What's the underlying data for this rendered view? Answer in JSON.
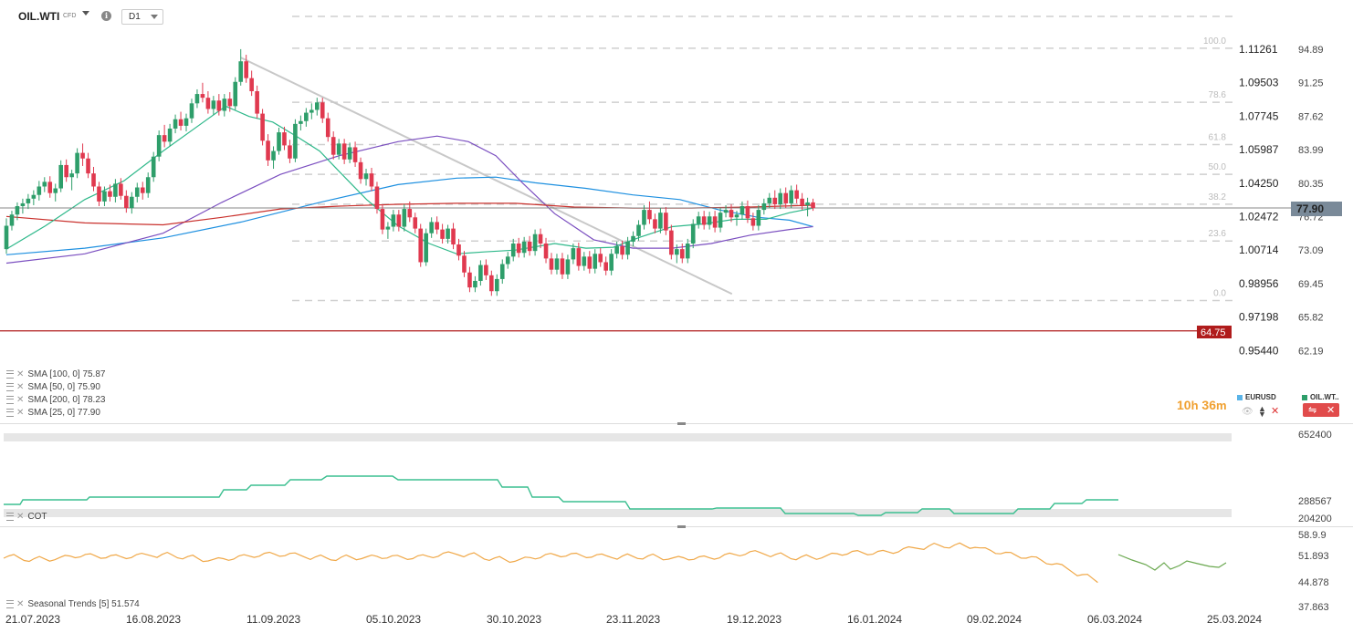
{
  "header": {
    "symbol": "OIL.WTI",
    "symbol_type": "CFD",
    "timeframe": "D1",
    "info_icon": "info-icon"
  },
  "price_axis": {
    "right_labels": [
      "94.89",
      "91.25",
      "87.62",
      "83.99",
      "80.35",
      "76.72",
      "73.09",
      "69.45",
      "65.82",
      "62.19"
    ],
    "left_labels": [
      "1.11261",
      "1.09503",
      "1.07745",
      "1.05987",
      "1.04250",
      "1.02472",
      "1.00714",
      "0.98956",
      "0.97198",
      "0.95440"
    ],
    "current_price": "77.90",
    "line_price": "64.75",
    "current_color": "#7a8a99",
    "line_color": "#b01c1c"
  },
  "fib_levels": [
    "100.0",
    "78.6",
    "61.8",
    "50.0",
    "38.2",
    "23.6",
    "0.0"
  ],
  "indicators": [
    {
      "label": "SMA",
      "params": "[100,  0]",
      "value": "75.87",
      "color": "#1e90e0"
    },
    {
      "label": "SMA",
      "params": "[50, 0]",
      "value": "75.90",
      "color": "#7b4fc0"
    },
    {
      "label": "SMA",
      "params": "[200,  0]",
      "value": "78.23",
      "color": "#c9302c"
    },
    {
      "label": "SMA",
      "params": "[25,  0]",
      "value": "77.90",
      "color": "#2eb88a"
    }
  ],
  "countdown": {
    "hours": "10",
    "h_unit": "h",
    "minutes": "36",
    "m_unit": "m"
  },
  "instruments": [
    {
      "name": "EURUSD",
      "color": "#5ab4e8"
    },
    {
      "name": "OIL.WT..",
      "color": "#2e9e6a"
    }
  ],
  "cot": {
    "label": "COT",
    "axis_labels": [
      "652400",
      "288567",
      "204200"
    ],
    "line_color": "#3cbf90"
  },
  "seasonal": {
    "label": "Seasonal Trends",
    "params": "[5]",
    "value": "51.574",
    "axis_labels": [
      "58.9.9",
      "51.893",
      "44.878",
      "37.863"
    ],
    "actual_color": "#f0a848",
    "forecast_color": "#6aa84f"
  },
  "dates": [
    "21.07.2023",
    "16.08.2023",
    "11.09.2023",
    "05.10.2023",
    "30.10.2023",
    "23.11.2023",
    "19.12.2023",
    "16.01.2024",
    "09.02.2024",
    "06.03.2024",
    "25.03.2024"
  ],
  "chart_data": {
    "type": "candlestick",
    "instrument": "OIL.WTI",
    "timeframe": "D1",
    "ylim": [
      62.19,
      96.5
    ],
    "candles": [
      [
        73.5,
        76.8,
        73.0,
        76.0
      ],
      [
        76.0,
        77.6,
        75.5,
        77.2
      ],
      [
        77.2,
        78.5,
        76.6,
        78.1
      ],
      [
        78.1,
        78.9,
        77.3,
        78.4
      ],
      [
        78.4,
        79.4,
        77.8,
        78.9
      ],
      [
        78.9,
        79.8,
        78.2,
        79.3
      ],
      [
        79.3,
        80.8,
        78.7,
        80.2
      ],
      [
        80.2,
        81.2,
        79.6,
        80.7
      ],
      [
        80.7,
        81.3,
        79.0,
        79.5
      ],
      [
        79.5,
        80.5,
        78.6,
        80.0
      ],
      [
        80.0,
        83.0,
        79.6,
        82.5
      ],
      [
        82.5,
        83.1,
        80.7,
        81.2
      ],
      [
        81.2,
        82.0,
        79.8,
        81.6
      ],
      [
        81.6,
        84.3,
        81.1,
        83.8
      ],
      [
        83.8,
        84.8,
        82.4,
        83.2
      ],
      [
        83.2,
        83.8,
        81.1,
        81.6
      ],
      [
        81.6,
        82.3,
        79.7,
        80.2
      ],
      [
        80.2,
        80.7,
        78.1,
        78.6
      ],
      [
        78.6,
        80.2,
        78.1,
        79.7
      ],
      [
        79.7,
        80.4,
        78.6,
        79.1
      ],
      [
        79.1,
        81.0,
        78.5,
        80.5
      ],
      [
        80.5,
        81.1,
        78.8,
        79.2
      ],
      [
        79.2,
        79.8,
        77.4,
        77.9
      ],
      [
        77.9,
        79.6,
        77.3,
        79.1
      ],
      [
        79.1,
        80.6,
        78.5,
        80.1
      ],
      [
        80.1,
        80.7,
        78.8,
        79.5
      ],
      [
        79.5,
        81.7,
        79.0,
        81.2
      ],
      [
        81.2,
        83.9,
        80.7,
        83.4
      ],
      [
        83.4,
        86.2,
        82.9,
        85.7
      ],
      [
        85.7,
        86.8,
        84.4,
        85.0
      ],
      [
        85.0,
        86.9,
        84.5,
        86.4
      ],
      [
        86.4,
        87.9,
        85.9,
        87.4
      ],
      [
        87.4,
        88.2,
        86.2,
        86.7
      ],
      [
        86.7,
        88.0,
        86.1,
        87.5
      ],
      [
        87.5,
        89.6,
        87.0,
        89.1
      ],
      [
        89.1,
        90.6,
        88.6,
        90.1
      ],
      [
        90.1,
        91.3,
        89.2,
        89.7
      ],
      [
        89.7,
        90.4,
        88.0,
        88.5
      ],
      [
        88.5,
        89.9,
        87.9,
        89.4
      ],
      [
        89.4,
        90.1,
        87.8,
        88.3
      ],
      [
        88.3,
        90.1,
        87.7,
        89.6
      ],
      [
        89.6,
        90.3,
        88.2,
        88.8
      ],
      [
        88.8,
        91.9,
        88.4,
        91.4
      ],
      [
        91.4,
        94.9,
        91.0,
        93.6
      ],
      [
        93.6,
        94.3,
        91.3,
        91.8
      ],
      [
        91.8,
        92.6,
        89.9,
        90.4
      ],
      [
        90.4,
        91.0,
        87.5,
        88.0
      ],
      [
        88.0,
        88.5,
        84.6,
        85.1
      ],
      [
        85.1,
        85.8,
        82.4,
        83.0
      ],
      [
        83.0,
        84.5,
        82.1,
        84.0
      ],
      [
        84.0,
        86.5,
        83.6,
        86.0
      ],
      [
        86.0,
        86.6,
        84.1,
        84.6
      ],
      [
        84.6,
        85.2,
        82.7,
        83.2
      ],
      [
        83.2,
        87.4,
        82.8,
        86.9
      ],
      [
        86.9,
        87.8,
        86.2,
        87.2
      ],
      [
        87.2,
        88.6,
        86.6,
        88.1
      ],
      [
        88.1,
        89.1,
        87.4,
        88.4
      ],
      [
        88.4,
        89.7,
        87.8,
        89.2
      ],
      [
        89.2,
        89.7,
        87.0,
        87.5
      ],
      [
        87.5,
        88.1,
        85.0,
        85.5
      ],
      [
        85.5,
        86.1,
        83.1,
        83.6
      ],
      [
        83.6,
        85.3,
        83.1,
        84.8
      ],
      [
        84.8,
        85.3,
        82.6,
        83.1
      ],
      [
        83.1,
        84.9,
        82.7,
        84.4
      ],
      [
        84.4,
        85.0,
        82.3,
        82.8
      ],
      [
        82.8,
        83.3,
        80.5,
        81.0
      ],
      [
        81.0,
        82.1,
        80.3,
        81.6
      ],
      [
        81.6,
        82.2,
        79.7,
        80.2
      ],
      [
        80.2,
        80.7,
        77.3,
        77.8
      ],
      [
        77.8,
        78.3,
        75.1,
        75.6
      ],
      [
        75.6,
        76.4,
        74.6,
        75.9
      ],
      [
        75.9,
        77.7,
        75.4,
        77.2
      ],
      [
        77.2,
        77.7,
        75.4,
        75.9
      ],
      [
        75.9,
        78.3,
        75.4,
        77.8
      ],
      [
        77.8,
        78.6,
        76.4,
        76.9
      ],
      [
        76.9,
        77.4,
        75.2,
        75.7
      ],
      [
        75.7,
        76.2,
        71.6,
        72.1
      ],
      [
        72.1,
        75.7,
        71.7,
        75.2
      ],
      [
        75.2,
        76.9,
        74.7,
        76.4
      ],
      [
        76.4,
        77.0,
        75.1,
        75.6
      ],
      [
        75.6,
        76.2,
        74.1,
        74.6
      ],
      [
        74.6,
        76.1,
        74.1,
        75.7
      ],
      [
        75.7,
        76.3,
        73.5,
        74.0
      ],
      [
        74.0,
        74.6,
        72.3,
        72.8
      ],
      [
        72.8,
        73.3,
        70.5,
        71.0
      ],
      [
        71.0,
        71.6,
        68.9,
        69.4
      ],
      [
        69.4,
        70.6,
        68.9,
        70.1
      ],
      [
        70.1,
        72.3,
        69.6,
        71.8
      ],
      [
        71.8,
        72.4,
        70.2,
        70.7
      ],
      [
        70.7,
        71.2,
        68.5,
        69.0
      ],
      [
        69.0,
        70.8,
        68.5,
        70.3
      ],
      [
        70.3,
        72.4,
        69.8,
        71.9
      ],
      [
        71.9,
        73.2,
        71.4,
        72.7
      ],
      [
        72.7,
        74.6,
        72.2,
        74.1
      ],
      [
        74.1,
        74.7,
        72.6,
        73.1
      ],
      [
        73.1,
        74.8,
        72.6,
        74.3
      ],
      [
        74.3,
        74.9,
        72.8,
        73.3
      ],
      [
        73.3,
        75.6,
        72.8,
        75.1
      ],
      [
        75.1,
        75.7,
        73.6,
        74.1
      ],
      [
        74.1,
        74.7,
        72.0,
        72.5
      ],
      [
        72.5,
        73.1,
        70.8,
        71.3
      ],
      [
        71.3,
        73.0,
        70.8,
        72.5
      ],
      [
        72.5,
        73.1,
        70.3,
        70.8
      ],
      [
        70.8,
        72.9,
        70.3,
        72.4
      ],
      [
        72.4,
        74.1,
        71.9,
        73.6
      ],
      [
        73.6,
        74.2,
        71.2,
        71.7
      ],
      [
        71.7,
        73.2,
        71.2,
        72.7
      ],
      [
        72.7,
        73.3,
        70.9,
        71.4
      ],
      [
        71.4,
        73.5,
        70.9,
        73.0
      ],
      [
        73.0,
        73.6,
        71.6,
        72.1
      ],
      [
        72.1,
        72.7,
        70.7,
        71.2
      ],
      [
        71.2,
        73.5,
        70.7,
        73.0
      ],
      [
        73.0,
        74.3,
        72.5,
        73.8
      ],
      [
        73.8,
        74.4,
        72.4,
        72.9
      ],
      [
        72.9,
        74.8,
        72.4,
        74.3
      ],
      [
        74.3,
        75.4,
        73.8,
        74.9
      ],
      [
        74.9,
        76.6,
        74.4,
        76.1
      ],
      [
        76.1,
        78.2,
        75.6,
        77.7
      ],
      [
        77.7,
        78.6,
        76.2,
        76.7
      ],
      [
        76.7,
        77.3,
        75.2,
        75.7
      ],
      [
        75.7,
        77.9,
        75.2,
        77.4
      ],
      [
        77.4,
        78.0,
        75.0,
        75.5
      ],
      [
        75.5,
        76.1,
        72.4,
        72.9
      ],
      [
        72.9,
        74.0,
        72.0,
        73.5
      ],
      [
        73.5,
        74.1,
        72.0,
        72.5
      ],
      [
        72.5,
        74.6,
        72.0,
        74.1
      ],
      [
        74.1,
        76.7,
        73.6,
        76.2
      ],
      [
        76.2,
        77.5,
        75.7,
        77.0
      ],
      [
        77.0,
        77.6,
        75.6,
        76.1
      ],
      [
        76.1,
        77.5,
        75.6,
        77.0
      ],
      [
        77.0,
        77.6,
        75.3,
        75.8
      ],
      [
        75.8,
        77.9,
        75.3,
        77.4
      ],
      [
        77.4,
        78.2,
        76.9,
        77.7
      ],
      [
        77.7,
        78.3,
        76.4,
        76.9
      ],
      [
        76.9,
        77.6,
        76.0,
        77.2
      ],
      [
        77.2,
        78.6,
        76.7,
        78.1
      ],
      [
        78.1,
        78.7,
        76.3,
        76.8
      ],
      [
        76.8,
        77.4,
        75.5,
        76.0
      ],
      [
        76.0,
        78.2,
        75.5,
        77.7
      ],
      [
        77.7,
        78.9,
        77.2,
        78.4
      ],
      [
        78.4,
        79.5,
        77.9,
        79.0
      ],
      [
        79.0,
        79.8,
        77.8,
        78.3
      ],
      [
        78.3,
        80.0,
        77.8,
        79.5
      ],
      [
        79.5,
        80.1,
        77.9,
        78.4
      ],
      [
        78.4,
        80.3,
        77.9,
        79.8
      ],
      [
        79.8,
        80.4,
        78.4,
        78.9
      ],
      [
        78.9,
        79.5,
        77.7,
        78.2
      ],
      [
        78.2,
        79.0,
        77.0,
        78.5
      ],
      [
        78.5,
        78.9,
        77.6,
        77.9
      ]
    ],
    "sma_series": [
      {
        "name": "SMA [100, 0]",
        "color": "#1e90e0",
        "points": [
          [
            0,
            72.9
          ],
          [
            20,
            73.6
          ],
          [
            40,
            74.7
          ],
          [
            60,
            76.4
          ],
          [
            80,
            78.5
          ],
          [
            100,
            80.4
          ],
          [
            115,
            81.1
          ],
          [
            125,
            81.2
          ],
          [
            135,
            80.6
          ],
          [
            148,
            80.0
          ],
          [
            160,
            79.3
          ],
          [
            172,
            78.8
          ],
          [
            182,
            77.7
          ],
          [
            192,
            76.9
          ],
          [
            200,
            76.6
          ],
          [
            206,
            75.9
          ]
        ]
      },
      {
        "name": "SMA [50, 0]",
        "color": "#7b4fc0",
        "points": [
          [
            0,
            72.0
          ],
          [
            20,
            73.0
          ],
          [
            40,
            75.2
          ],
          [
            55,
            78.5
          ],
          [
            70,
            81.5
          ],
          [
            85,
            83.5
          ],
          [
            100,
            85.0
          ],
          [
            110,
            85.6
          ],
          [
            118,
            85.0
          ],
          [
            125,
            83.5
          ],
          [
            132,
            80.5
          ],
          [
            140,
            77.3
          ],
          [
            150,
            74.5
          ],
          [
            160,
            73.6
          ],
          [
            170,
            73.6
          ],
          [
            180,
            74.1
          ],
          [
            190,
            75.0
          ],
          [
            200,
            75.6
          ],
          [
            206,
            75.9
          ]
        ]
      },
      {
        "name": "SMA [200, 0]",
        "color": "#c9302c",
        "points": [
          [
            0,
            77.0
          ],
          [
            20,
            76.3
          ],
          [
            40,
            76.1
          ],
          [
            55,
            76.9
          ],
          [
            70,
            77.8
          ],
          [
            85,
            78.1
          ],
          [
            100,
            78.3
          ],
          [
            115,
            78.4
          ],
          [
            130,
            78.4
          ],
          [
            145,
            78.0
          ],
          [
            160,
            77.9
          ],
          [
            175,
            77.9
          ],
          [
            190,
            78.0
          ],
          [
            206,
            78.2
          ]
        ]
      },
      {
        "name": "SMA [25, 0]",
        "color": "#2eb88a",
        "points": [
          [
            0,
            73.5
          ],
          [
            10,
            76.0
          ],
          [
            20,
            78.8
          ],
          [
            30,
            80.8
          ],
          [
            40,
            84.0
          ],
          [
            50,
            87.0
          ],
          [
            56,
            88.8
          ],
          [
            62,
            87.7
          ],
          [
            68,
            87.1
          ],
          [
            74,
            85.6
          ],
          [
            80,
            84.0
          ],
          [
            85,
            81.8
          ],
          [
            92,
            78.8
          ],
          [
            100,
            76.0
          ],
          [
            108,
            74.1
          ],
          [
            115,
            73.0
          ],
          [
            122,
            73.2
          ],
          [
            130,
            73.4
          ],
          [
            140,
            74.1
          ],
          [
            148,
            73.6
          ],
          [
            155,
            73.7
          ],
          [
            162,
            74.8
          ],
          [
            170,
            75.9
          ],
          [
            178,
            76.2
          ],
          [
            186,
            76.7
          ],
          [
            194,
            76.7
          ],
          [
            200,
            77.4
          ],
          [
            206,
            77.9
          ]
        ]
      }
    ],
    "trendline": [
      [
        43,
        94.0
      ],
      [
        108,
        69.0
      ]
    ],
    "fib_retracement": {
      "high": 95.0,
      "low": 68.0,
      "levels": [
        100.0,
        78.6,
        61.8,
        50.0,
        38.2,
        23.6,
        0.0
      ]
    },
    "horizontal_line": 64.75,
    "current_price": 77.9
  }
}
